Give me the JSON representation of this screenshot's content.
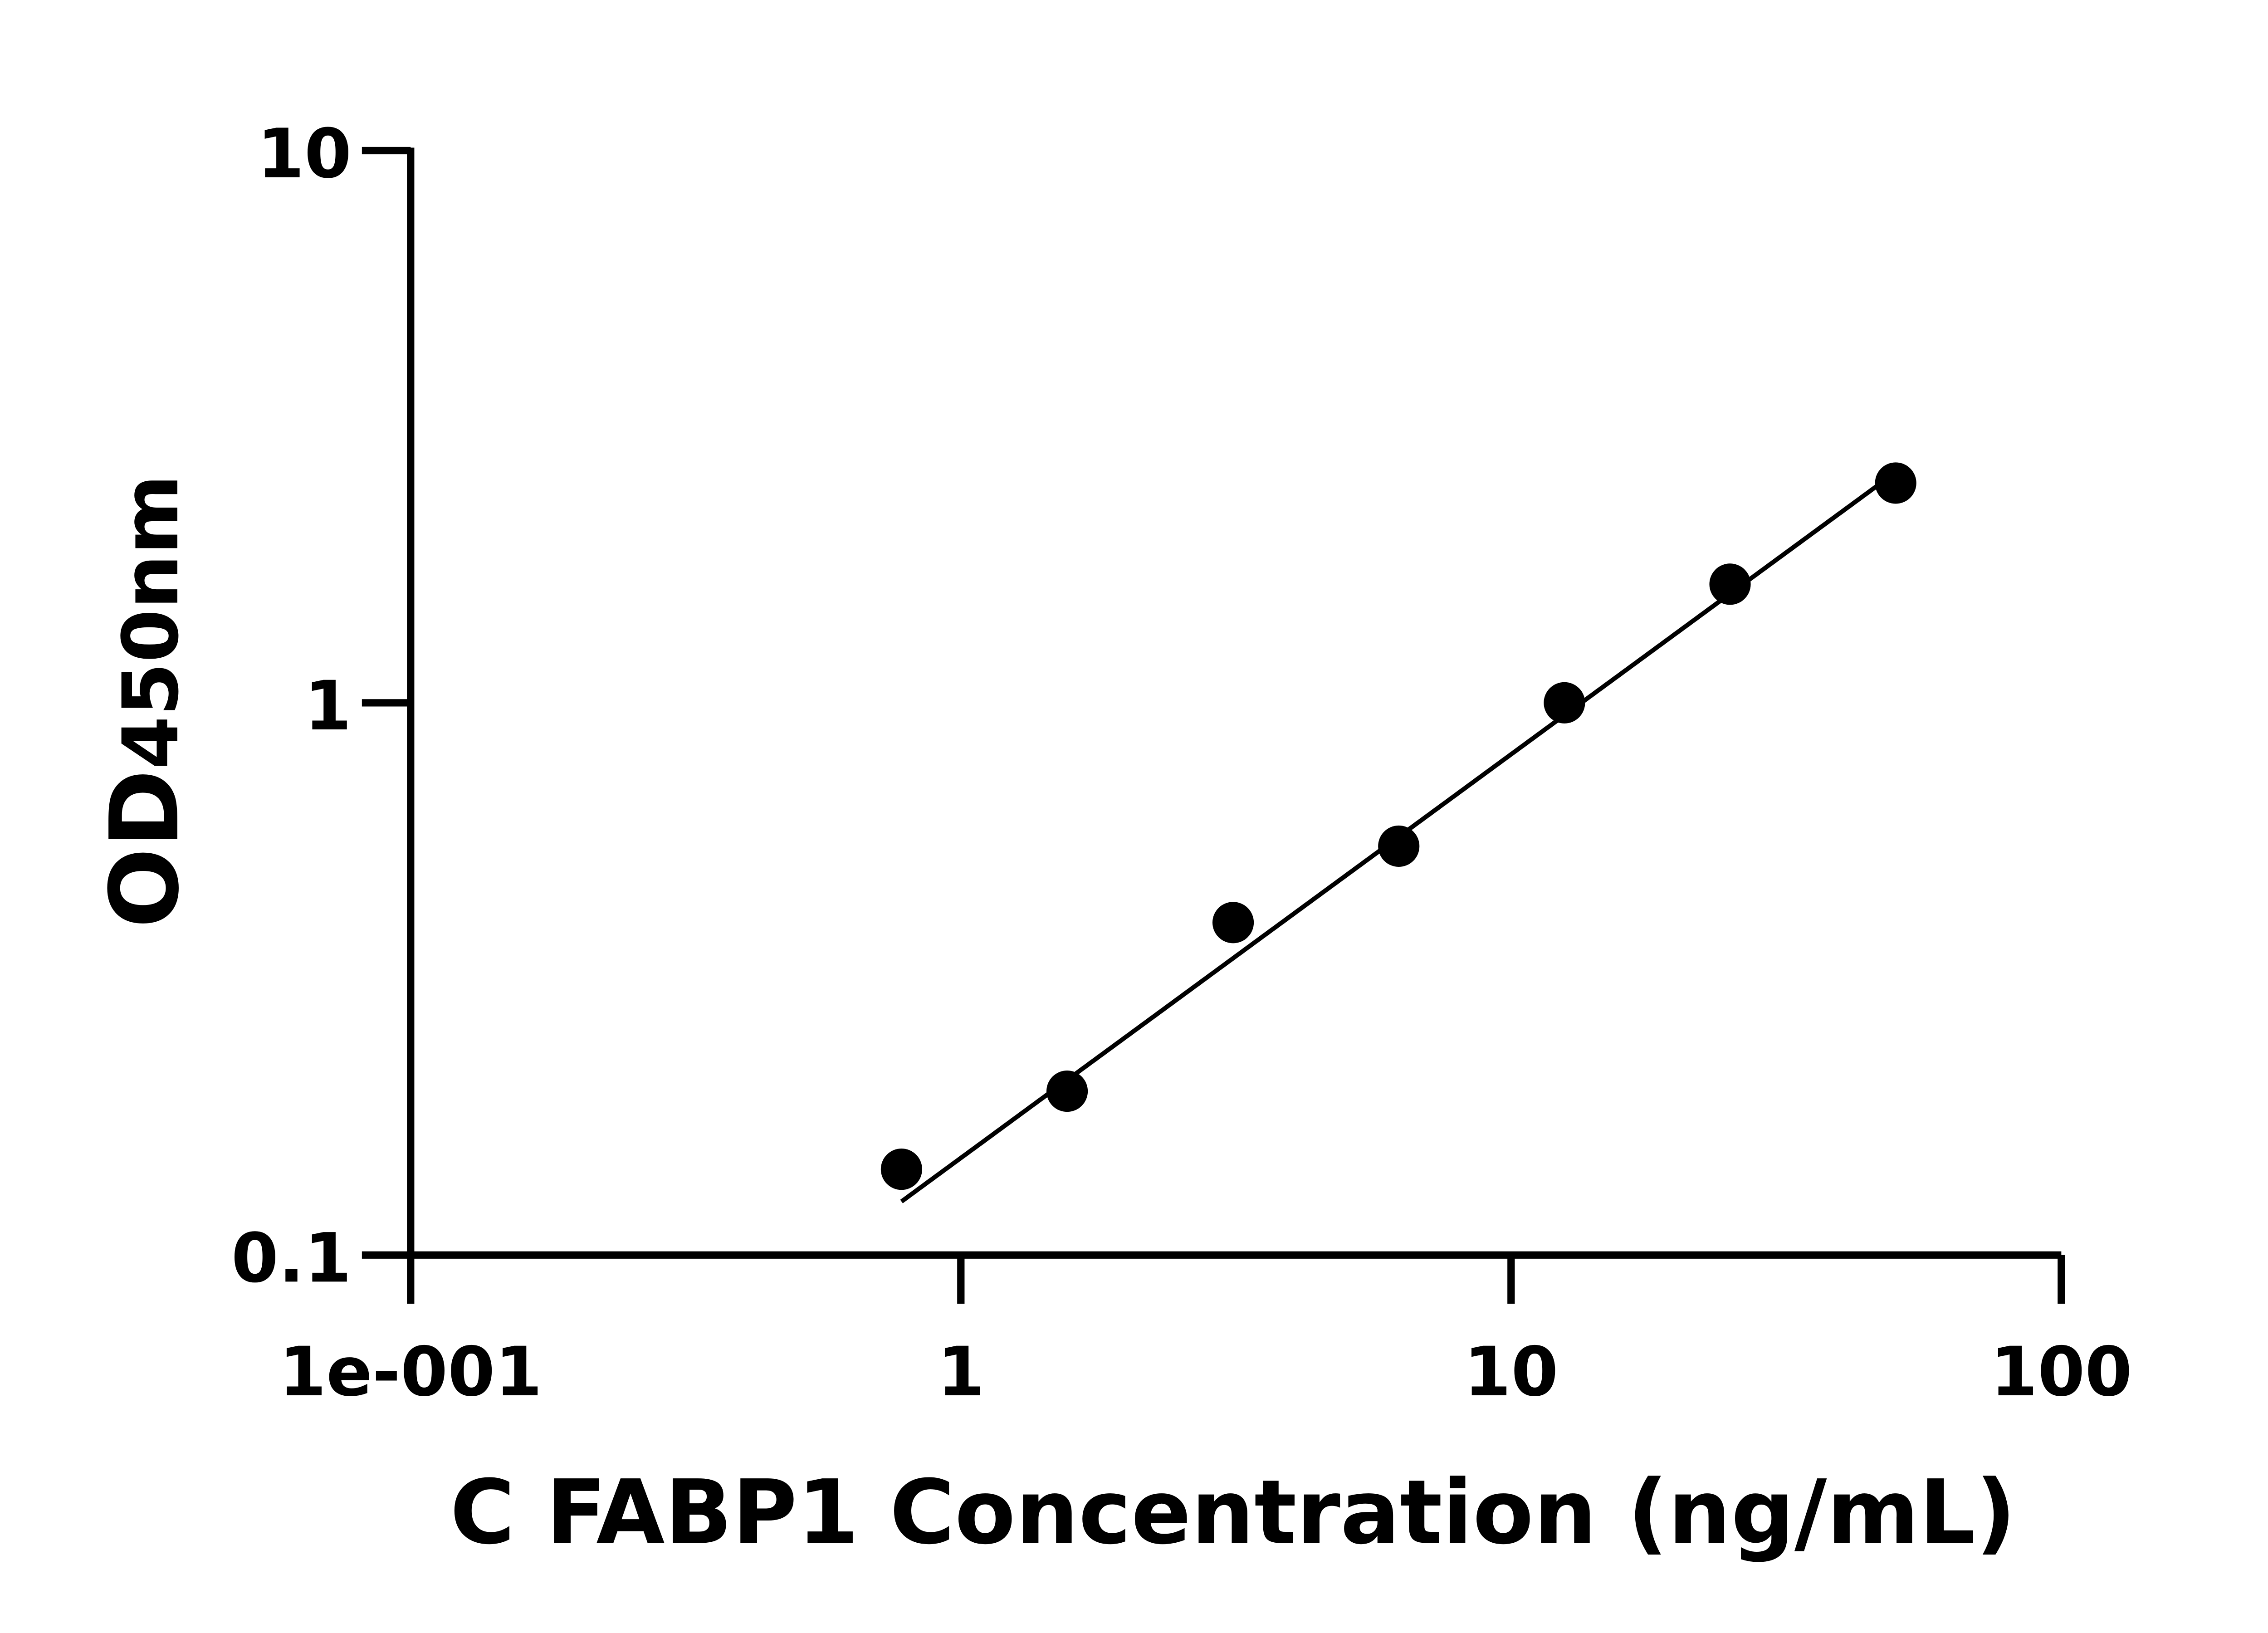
{
  "chart_data": {
    "type": "scatter",
    "title": "",
    "xlabel": "C FABP1 Concentration (ng/mL)",
    "ylabel_main": "OD",
    "ylabel_sub": "450nm",
    "xscale": "log",
    "yscale": "log",
    "xlim": [
      0.1,
      100
    ],
    "ylim": [
      0.1,
      10
    ],
    "xticks": [
      0.1,
      1,
      10,
      100
    ],
    "xtick_labels": [
      "1e-001",
      "1",
      "10",
      "100"
    ],
    "yticks": [
      0.1,
      1,
      10
    ],
    "ytick_labels": [
      "0.1",
      "1",
      "10"
    ],
    "grid": false,
    "points": [
      {
        "x": 0.78,
        "y": 0.143
      },
      {
        "x": 1.56,
        "y": 0.198
      },
      {
        "x": 3.125,
        "y": 0.4
      },
      {
        "x": 6.25,
        "y": 0.55
      },
      {
        "x": 12.5,
        "y": 1.0
      },
      {
        "x": 25,
        "y": 1.64
      },
      {
        "x": 50,
        "y": 2.5
      }
    ],
    "fit_line": [
      {
        "x": 0.78,
        "y": 0.125
      },
      {
        "x": 47,
        "y": 2.5
      }
    ],
    "colors": {
      "marker": "#000000",
      "line": "#000000",
      "axis": "#000000"
    }
  }
}
